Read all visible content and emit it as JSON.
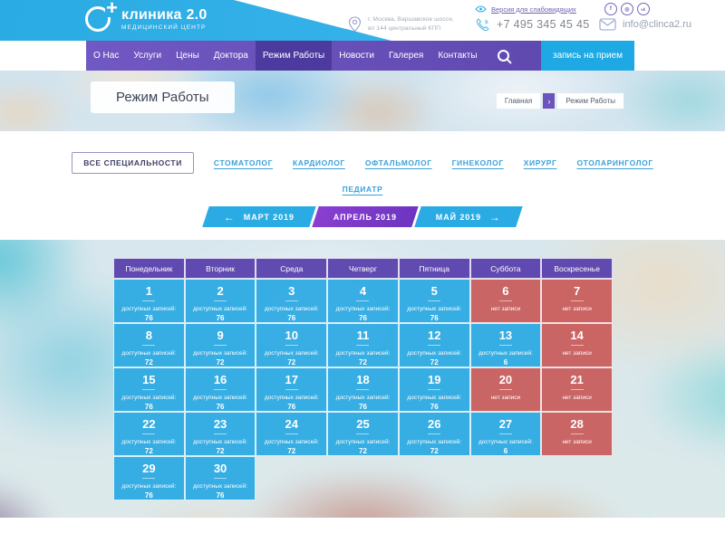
{
  "brand": {
    "name": "клиника 2.0",
    "tagline": "МЕДИЦИНСКИЙ ЦЕНТР"
  },
  "topbar": {
    "accessibility": "Версия для слабовидящих",
    "address": [
      "г. Москва, Варшавское шоссе,",
      "вл 144 центральный КПП"
    ],
    "phone": "+7 495 345 45 45",
    "email": "info@clinca2.ru",
    "socials": [
      {
        "name": "facebook-icon",
        "glyph": "f"
      },
      {
        "name": "instagram-icon",
        "glyph": "◎"
      },
      {
        "name": "vk-icon",
        "glyph": "vk"
      }
    ]
  },
  "nav": {
    "items": [
      "О Нас",
      "Услуги",
      "Цены",
      "Доктора",
      "Режим Работы",
      "Новости",
      "Галерея",
      "Контакты"
    ],
    "active": "Режим Работы",
    "cta": "запись на прием"
  },
  "hero": {
    "title": "Режим Работы",
    "breadcrumb": {
      "home": "Главная",
      "separator": "›",
      "current": "Режим Работы"
    }
  },
  "specialties": {
    "active": "ВСЕ СПЕЦИАЛЬНОСТИ",
    "row1": [
      "СТОМАТОЛОГ",
      "КАРДИОЛОГ",
      "ОФТАЛЬМОЛОГ",
      "ГИНЕКОЛОГ",
      "ХИРУРГ",
      "ОТОЛАРИНГОЛОГ"
    ],
    "row2": [
      "ПЕДИАТР"
    ]
  },
  "months": {
    "prev_arrow": "←",
    "prev": "МАРТ 2019",
    "current": "АПРЕЛЬ 2019",
    "next": "МАЙ 2019",
    "next_arrow": "→"
  },
  "calendar": {
    "weekdays": [
      "Понедельник",
      "Вторник",
      "Среда",
      "Четверг",
      "Пятница",
      "Суббота",
      "Воскресенье"
    ],
    "available_label": "доступных записей:",
    "unavailable_label": "нет записи",
    "weeks": [
      [
        {
          "day": 1,
          "slots": 76
        },
        {
          "day": 2,
          "slots": 76
        },
        {
          "day": 3,
          "slots": 76
        },
        {
          "day": 4,
          "slots": 76
        },
        {
          "day": 5,
          "slots": 76
        },
        {
          "day": 6
        },
        {
          "day": 7
        }
      ],
      [
        {
          "day": 8,
          "slots": 72
        },
        {
          "day": 9,
          "slots": 72
        },
        {
          "day": 10,
          "slots": 72
        },
        {
          "day": 11,
          "slots": 72
        },
        {
          "day": 12,
          "slots": 72
        },
        {
          "day": 13,
          "slots": 6
        },
        {
          "day": 14
        }
      ],
      [
        {
          "day": 15,
          "slots": 76
        },
        {
          "day": 16,
          "slots": 76
        },
        {
          "day": 17,
          "slots": 76
        },
        {
          "day": 18,
          "slots": 76
        },
        {
          "day": 19,
          "slots": 76
        },
        {
          "day": 20
        },
        {
          "day": 21
        }
      ],
      [
        {
          "day": 22,
          "slots": 72
        },
        {
          "day": 23,
          "slots": 72
        },
        {
          "day": 24,
          "slots": 72
        },
        {
          "day": 25,
          "slots": 72
        },
        {
          "day": 26,
          "slots": 72
        },
        {
          "day": 27,
          "slots": 6
        },
        {
          "day": 28
        }
      ],
      [
        {
          "day": 29,
          "slots": 76
        },
        {
          "day": 30,
          "slots": 76
        },
        null,
        null,
        null,
        null,
        null
      ]
    ]
  },
  "colors": {
    "brand_cyan": "#2aabe3",
    "nav_purple": "#6751b9",
    "nav_active_purple": "#4d3a9e",
    "cta_cyan": "#1ea9e5",
    "month_active_purple": "#7b3bc9",
    "calendar_header_purple": "#5b44ae",
    "cell_open_blue": "#2aa9e2",
    "cell_closed_red": "#c75250"
  }
}
